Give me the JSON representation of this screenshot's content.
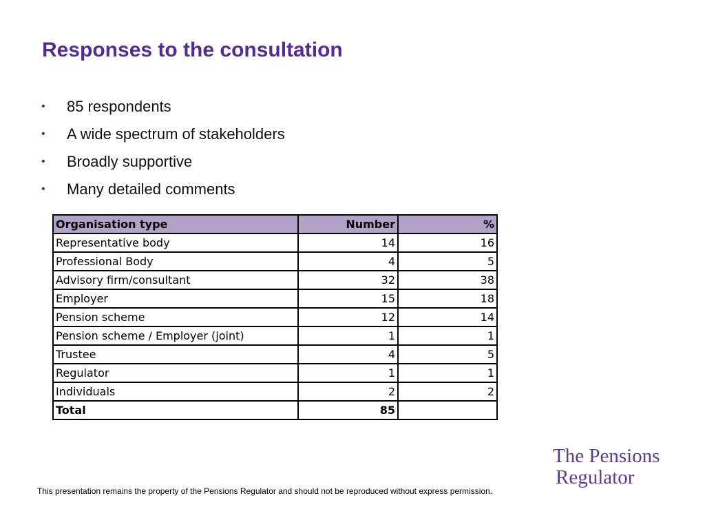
{
  "slide": {
    "title": "Responses to the consultation",
    "bullets": [
      "85 respondents",
      "A wide spectrum of stakeholders",
      "Broadly supportive",
      "Many detailed comments"
    ],
    "bullet_glyph": "•",
    "accent_color": "#532d8e",
    "header_fill_color": "#b3a2c7"
  },
  "table": {
    "headers": [
      "Organisation type",
      "Number",
      "%"
    ],
    "rows": [
      [
        "Representative body",
        "14",
        "16"
      ],
      [
        "Professional Body",
        "4",
        "5"
      ],
      [
        "Advisory firm/consultant",
        "32",
        "38"
      ],
      [
        "Employer",
        "15",
        "18"
      ],
      [
        "Pension scheme",
        "12",
        "14"
      ],
      [
        "Pension scheme / Employer (joint)",
        "1",
        "1"
      ],
      [
        "Trustee",
        "4",
        "5"
      ],
      [
        "Regulator",
        "1",
        "1"
      ],
      [
        "Individuals",
        "2",
        "2"
      ]
    ],
    "total": [
      "Total",
      "85",
      ""
    ]
  },
  "footer": {
    "note": "This presentation remains the property of the Pensions Regulator and should not be reproduced without express permission."
  },
  "logo": {
    "line1": "The Pensions",
    "line2": "Regulator",
    "color": "#5d3b8c"
  }
}
